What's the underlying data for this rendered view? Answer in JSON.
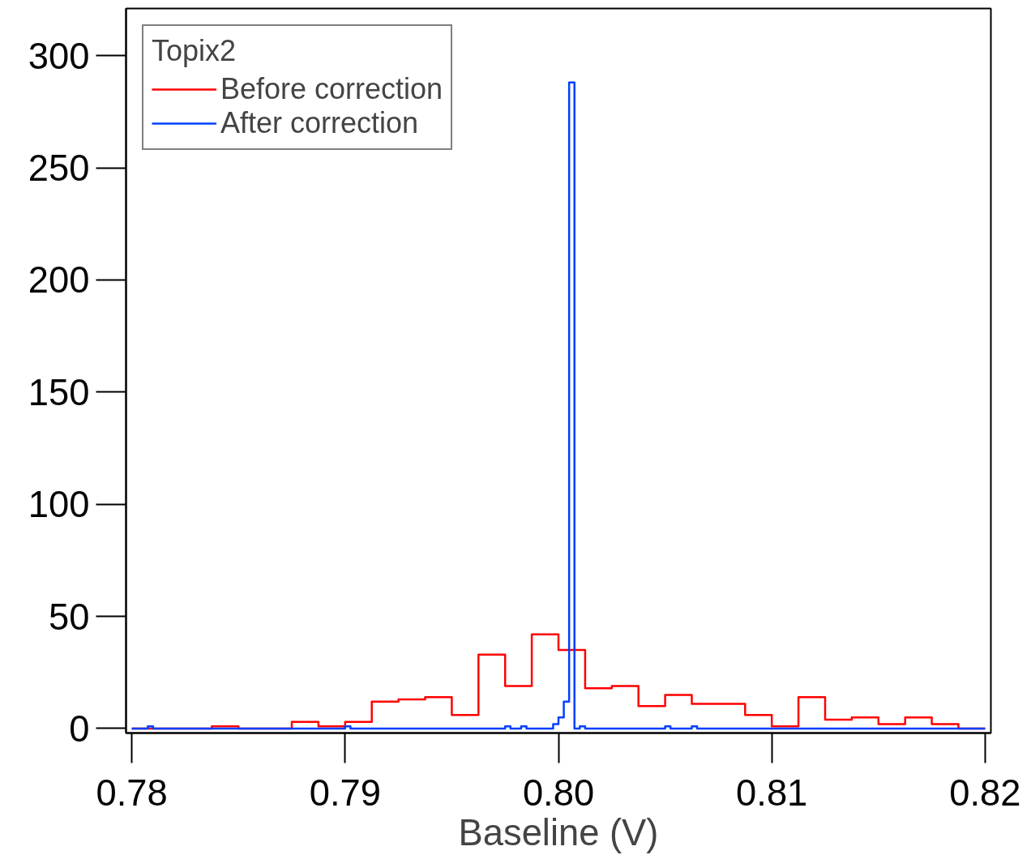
{
  "chart_data": {
    "type": "step",
    "xlabel": "Baseline (V)",
    "legend_title": "Topix2",
    "legend": "top left",
    "grid": false,
    "xlim": [
      0.77973,
      0.82027
    ],
    "ylim": [
      -2,
      321
    ],
    "xticks": [
      0.78,
      0.79,
      {
        "value": 0.8,
        "label": "0.80"
      },
      0.81,
      0.82
    ],
    "yticks": [
      0,
      50,
      100,
      150,
      200,
      250,
      300
    ],
    "series": [
      {
        "name": "Before correction",
        "color": "#ff0000",
        "x": [
          0.78,
          0.78125,
          0.7825,
          0.78375,
          0.785,
          0.78625,
          0.7875,
          0.78875,
          0.79,
          0.79125,
          0.7925,
          0.79375,
          0.795,
          0.79625,
          0.7975,
          0.79875,
          0.8,
          0.80125,
          0.8025,
          0.80375,
          0.805,
          0.80625,
          0.8075,
          0.80875,
          0.81,
          0.81125,
          0.8125,
          0.81375,
          0.815,
          0.81625,
          0.8175,
          0.81875,
          0.82
        ],
        "values": [
          0,
          0,
          0,
          1,
          0,
          0,
          3,
          1,
          3,
          12,
          13,
          14,
          6,
          33,
          19,
          42,
          35,
          18,
          19,
          10,
          15,
          11,
          11,
          6,
          1,
          14,
          4,
          5,
          2,
          5,
          2,
          0,
          0
        ]
      },
      {
        "name": "After correction",
        "color": "#0040ff",
        "x": [
          0.78,
          0.78075,
          0.781,
          0.79,
          0.79025,
          0.7975,
          0.79775,
          0.79825,
          0.7985,
          0.79975,
          0.8,
          0.80025,
          0.8005,
          0.80075,
          0.801,
          0.80125,
          0.805,
          0.80525,
          0.80625,
          0.8065,
          0.82
        ],
        "values": [
          0,
          1,
          0,
          1,
          0,
          1,
          0,
          1,
          0,
          2,
          5,
          12,
          288,
          0,
          1,
          0,
          1,
          0,
          1,
          0,
          0
        ]
      }
    ]
  }
}
